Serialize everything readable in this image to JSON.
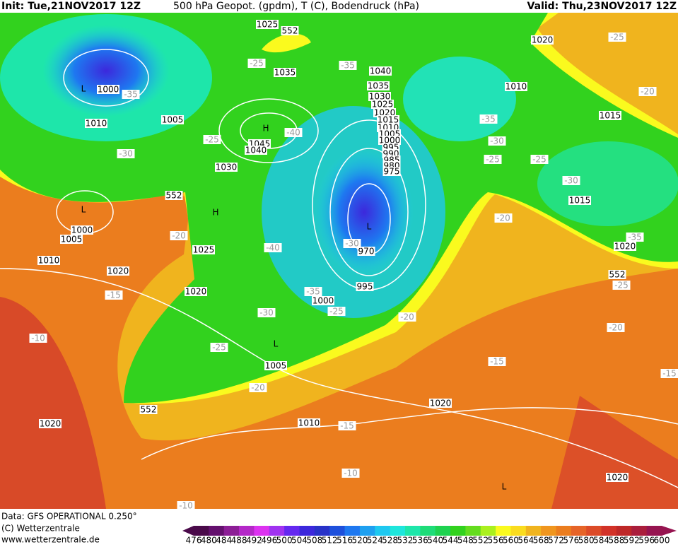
{
  "header": {
    "init": "Init: Tue,21NOV2017 12Z",
    "title": "500 hPa Geopot. (gpdm), T (C), Bodendruck (hPa)",
    "valid": "Valid: Thu,23NOV2017 12Z"
  },
  "footer": {
    "data": "Data: GFS OPERATIONAL 0.250°",
    "copyright": "(C) Wetterzentrale",
    "url": "www.wetterzentrale.de"
  },
  "map_labels": {
    "pressure": [
      1025,
      552,
      1035,
      1040,
      1035,
      1030,
      1025,
      1020,
      1015,
      1010,
      1005,
      1000,
      995,
      990,
      985,
      980,
      975,
      1000,
      1005,
      1010,
      1045,
      1040,
      1030,
      552,
      1000,
      1005,
      1010,
      1025,
      1020,
      1020,
      970,
      995,
      1000,
      1005,
      552,
      1020,
      1010,
      1020,
      1020,
      1010,
      1015,
      1015,
      1020,
      552,
      1020
    ],
    "temperature": [
      -25,
      -35,
      -35,
      -30,
      -25,
      -40,
      -35,
      -30,
      -25,
      -25,
      -30,
      -25,
      -20,
      -20,
      -20,
      -40,
      -30,
      -15,
      -35,
      -25,
      -30,
      -20,
      -25,
      -10,
      -20,
      -15,
      -15,
      -10,
      -20,
      -15,
      -35,
      -25,
      -10
    ],
    "centers": [
      "L",
      "H",
      "L",
      "H",
      "L",
      "L",
      "L"
    ]
  },
  "colorbar": {
    "ticks": [
      476,
      480,
      484,
      488,
      492,
      496,
      500,
      504,
      508,
      512,
      516,
      520,
      524,
      528,
      532,
      536,
      540,
      544,
      548,
      552,
      556,
      560,
      564,
      568,
      572,
      576,
      580,
      584,
      588,
      592,
      596,
      600
    ],
    "colors": [
      "#4a0a4a",
      "#64106e",
      "#8c1e96",
      "#b428c8",
      "#dc32f0",
      "#a032f0",
      "#6428f0",
      "#3c28dc",
      "#2832c8",
      "#1e50dc",
      "#1e78f0",
      "#1ea0f0",
      "#1ec8f0",
      "#1ee6dc",
      "#1ee6aa",
      "#1edc78",
      "#1ed250",
      "#32d21e",
      "#64dc1e",
      "#aaf01e",
      "#fafa1e",
      "#fadc1e",
      "#f0b41e",
      "#f0961e",
      "#eb7d1e",
      "#e66428",
      "#dc4b28",
      "#d23228",
      "#be2828",
      "#aa1e3c",
      "#961450"
    ]
  }
}
